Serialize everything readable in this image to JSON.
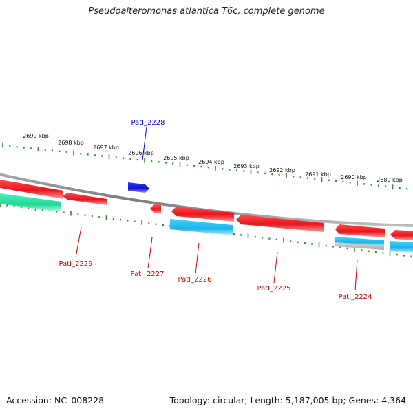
{
  "title": "Pseudoalteromonas atlantica T6c, complete genome",
  "footer": {
    "accession": "Accession: NC_008228",
    "summary": "Topology: circular; Length: 5,187,005 bp; Genes: 4,364"
  },
  "colors": {
    "backbone": "#8c8c8c",
    "ticks": "#2e8b2e",
    "forward_gene": "#1a1adb",
    "reverse_gene": "#e8141e",
    "cds_cyan": "#19b5e6",
    "cds_green": "#2de3a6",
    "cds_grey": "#b4b4b4",
    "label_forward": "#0000cc",
    "label_reverse": "#cc0000"
  },
  "scale_labels": [
    "2699 kbp",
    "2698 kbp",
    "2697 kbp",
    "2696 kbp",
    "2695 kbp",
    "2694 kbp",
    "2693 kbp",
    "2692 kbp",
    "2691 kbp",
    "2690 kbp",
    "2689 kbp"
  ],
  "gene_labels": [
    {
      "id": "g2228",
      "text": "PatI_2228",
      "strand": "forward"
    },
    {
      "id": "g2229",
      "text": "PatI_2229",
      "strand": "reverse"
    },
    {
      "id": "g2227",
      "text": "PatI_2227",
      "strand": "reverse"
    },
    {
      "id": "g2226",
      "text": "PatI_2226",
      "strand": "reverse"
    },
    {
      "id": "g2225",
      "text": "PatI_2225",
      "strand": "reverse"
    },
    {
      "id": "g2224",
      "text": "PatI_2224",
      "strand": "reverse"
    }
  ]
}
